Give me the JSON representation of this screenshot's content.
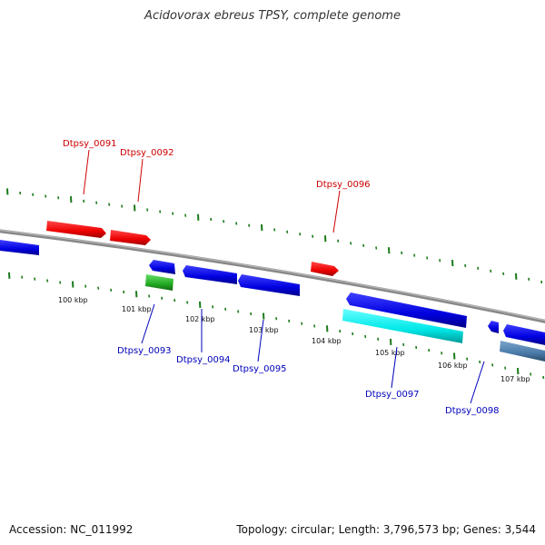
{
  "title": "Acidovorax ebreus TPSY, complete genome",
  "footer": {
    "accession": "Accession: NC_011992",
    "summary": "Topology: circular; Length: 3,796,573 bp; Genes: 3,544"
  },
  "colors": {
    "backbone": "#808080",
    "tick": "#1a7a1a",
    "forward_gene": "#ff0000",
    "reverse_gene": "#0000ee",
    "green_gene": "#33bb33",
    "cyan_gene": "#00eeee",
    "steel_gene": "#4a7aa8",
    "label_forward": "#cc0000",
    "label_reverse": "#0000bb"
  },
  "ruler": {
    "labels": [
      "100 kbp",
      "101 kbp",
      "102 kbp",
      "103 kbp",
      "104 kbp",
      "105 kbp",
      "106 kbp",
      "107 kbp"
    ]
  },
  "gene_labels": [
    {
      "name": "Dtpsy_0091",
      "strand": "forward"
    },
    {
      "name": "Dtpsy_0092",
      "strand": "forward"
    },
    {
      "name": "Dtpsy_0096",
      "strand": "forward"
    },
    {
      "name": "Dtpsy_0093",
      "strand": "reverse"
    },
    {
      "name": "Dtpsy_0094",
      "strand": "reverse"
    },
    {
      "name": "Dtpsy_0095",
      "strand": "reverse"
    },
    {
      "name": "Dtpsy_0097",
      "strand": "reverse"
    },
    {
      "name": "Dtpsy_0098",
      "strand": "reverse"
    }
  ]
}
